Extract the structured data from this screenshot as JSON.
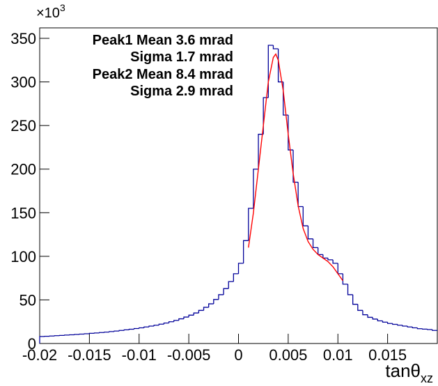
{
  "chart_data": {
    "type": "histogram",
    "multiplier": {
      "base": "×10",
      "exponent": "3"
    },
    "x_label": {
      "main": "tanθ",
      "sub": "xz"
    },
    "annotations": [
      "Peak1 Mean 3.6 mrad",
      "Sigma 1.7 mrad",
      "Peak2 Mean 8.4 mrad",
      "Sigma 2.9 mrad"
    ],
    "bins": [
      -0.02,
      -0.0195,
      -0.019,
      -0.0185,
      -0.018,
      -0.0175,
      -0.017,
      -0.0165,
      -0.016,
      -0.0155,
      -0.015,
      -0.0145,
      -0.014,
      -0.0135,
      -0.013,
      -0.0125,
      -0.012,
      -0.0115,
      -0.011,
      -0.0105,
      -0.01,
      -0.0095,
      -0.009,
      -0.0085,
      -0.008,
      -0.0075,
      -0.007,
      -0.0065,
      -0.006,
      -0.0055,
      -0.005,
      -0.0045,
      -0.004,
      -0.0035,
      -0.003,
      -0.0025,
      -0.002,
      -0.0015,
      -0.001,
      -0.0005,
      0,
      0.0005,
      0.001,
      0.0015,
      0.002,
      0.0025,
      0.003,
      0.0035,
      0.004,
      0.0045,
      0.005,
      0.0055,
      0.006,
      0.0065,
      0.007,
      0.0075,
      0.008,
      0.0085,
      0.009,
      0.0095,
      0.01,
      0.0105,
      0.011,
      0.0115,
      0.012,
      0.0125,
      0.013,
      0.0135,
      0.014,
      0.0145,
      0.015,
      0.0155,
      0.016,
      0.0165,
      0.017,
      0.0175,
      0.018,
      0.0185,
      0.019,
      0.0195,
      0.02
    ],
    "values": [
      8,
      8.3,
      8.6,
      9,
      9.3,
      9.7,
      10,
      10.4,
      10.8,
      11.2,
      11.7,
      12.1,
      12.6,
      13.1,
      13.7,
      14.3,
      15,
      15.7,
      16.4,
      17.2,
      18,
      19,
      20,
      21,
      22.2,
      23.5,
      25,
      26.5,
      28.3,
      30.3,
      32.5,
      35,
      38,
      41.5,
      45.5,
      50.5,
      56,
      63,
      71,
      80,
      92,
      118,
      155,
      200,
      240,
      282,
      342,
      338,
      300,
      262,
      222,
      185,
      157,
      135,
      120,
      110,
      102,
      98,
      96,
      92,
      80,
      68,
      56,
      45,
      38,
      33,
      30,
      28,
      26,
      24.5,
      23,
      22,
      21,
      20,
      19,
      18,
      17,
      16.5,
      16,
      15
    ],
    "color": "#000099",
    "fit": {
      "color": "#ff0000",
      "x": [
        0.001,
        0.0015,
        0.002,
        0.0025,
        0.003,
        0.0035,
        0.00375,
        0.004,
        0.0045,
        0.005,
        0.0055,
        0.006,
        0.0065,
        0.007,
        0.0075,
        0.008,
        0.0085,
        0.009,
        0.0095,
        0.01,
        0.0105
      ],
      "values": [
        110,
        150,
        200,
        250,
        300,
        328,
        332,
        325,
        290,
        240,
        195,
        158,
        132,
        117,
        108,
        102,
        98,
        94,
        88,
        80,
        72
      ]
    },
    "xlim": [
      -0.02,
      0.02
    ],
    "xticks": [
      -0.02,
      -0.015,
      -0.01,
      -0.005,
      0,
      0.005,
      0.01,
      0.015
    ],
    "ylim": [
      0,
      362
    ],
    "yticks": [
      0,
      50,
      100,
      150,
      200,
      250,
      300,
      350
    ]
  }
}
